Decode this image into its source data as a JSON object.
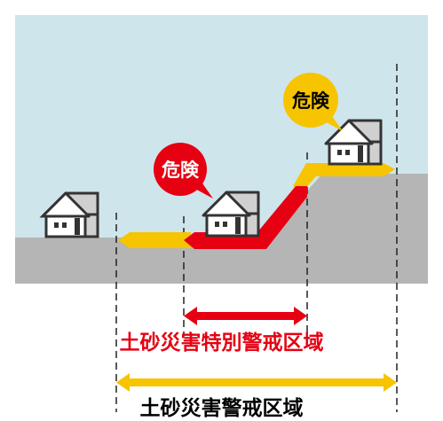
{
  "colors": {
    "sky": "#cfe5ec",
    "ground": "#b5b5b5",
    "red": "#e60012",
    "yellow": "#f6c400",
    "house_body": "#ffffff",
    "house_outline": "#333333",
    "house_window": "#333333",
    "bubble_text": "#000000",
    "bubble_red_text": "#ffffff",
    "dashed_line": "#222222"
  },
  "bubbles": {
    "red_label": "危険",
    "yellow_label": "危険"
  },
  "zones": {
    "special_warning_label": "土砂災害特別警戒区域",
    "warning_label": "土砂災害警戒区域"
  }
}
